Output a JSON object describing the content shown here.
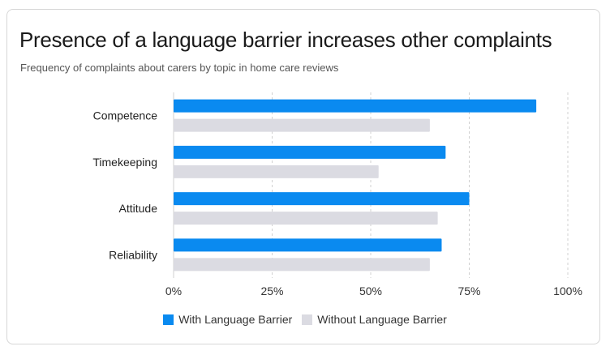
{
  "card": {
    "title": "Presence of a language barrier increases other complaints",
    "subtitle": "Frequency of complaints about carers by topic in home care reviews"
  },
  "chart_data": {
    "type": "bar",
    "orientation": "horizontal",
    "categories": [
      "Competence",
      "Timekeeping",
      "Attitude",
      "Reliability"
    ],
    "series": [
      {
        "name": "With Language Barrier",
        "color": "#0a8af0",
        "values": [
          92,
          69,
          75,
          68
        ]
      },
      {
        "name": "Without Language Barrier",
        "color": "#dbdbe2",
        "values": [
          65,
          52,
          67,
          65
        ]
      }
    ],
    "xlim": [
      0,
      100
    ],
    "xticks": [
      "0%",
      "25%",
      "50%",
      "75%",
      "100%"
    ],
    "grid": true,
    "legend": "bottom-center"
  }
}
